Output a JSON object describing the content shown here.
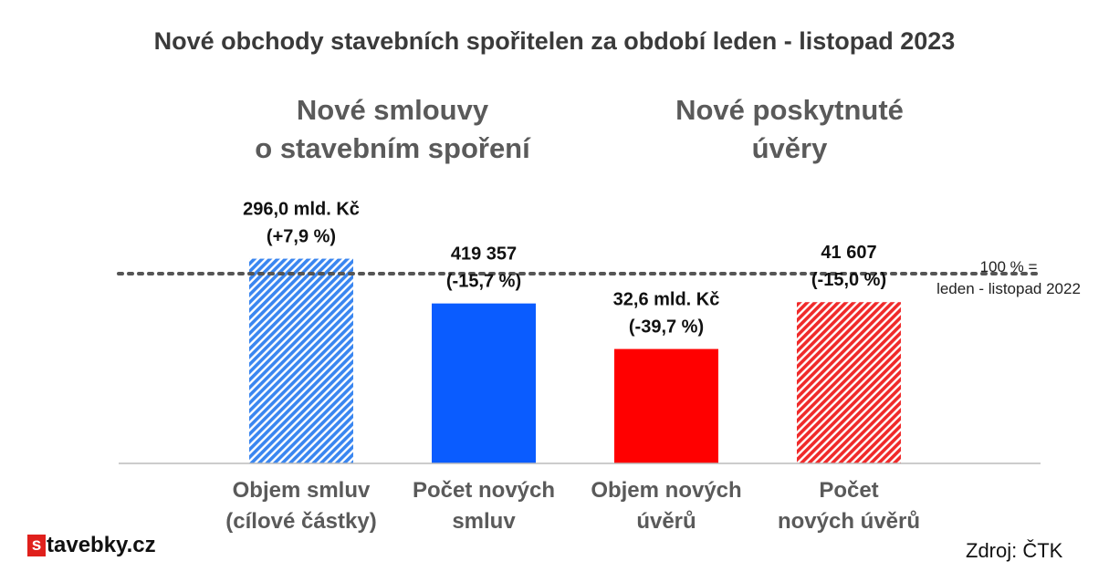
{
  "title": "Nové obchody stavebních spořitelen za období leden - listopad 2023",
  "group_titles": [
    {
      "line1": "Nové smlouvy",
      "line2": "o stavebním spoření"
    },
    {
      "line1": "Nové poskytnuté",
      "line2": "úvěry"
    }
  ],
  "reference_note": {
    "line1": "100 % =",
    "line2": "leden - listopad 2022"
  },
  "logo_text": {
    "s": "s",
    "rest": "tavebky.cz"
  },
  "source": "Zdroj: ČTK",
  "chart_data": {
    "type": "bar",
    "y_unit": "% of leden - listopad 2022",
    "reference_line": 100,
    "ylim": [
      0,
      130
    ],
    "categories": [
      {
        "line1": "Objem smluv",
        "line2": "(cílové částky)"
      },
      {
        "line1": "Počet  nových",
        "line2": "smluv"
      },
      {
        "line1": "Objem nových",
        "line2": "úvěrů"
      },
      {
        "line1": "Počet",
        "line2": "nových úvěrů"
      }
    ],
    "values": [
      107.9,
      84.3,
      60.3,
      85.0
    ],
    "bar_colors": [
      "#3a86f0",
      "#0a5cff",
      "#ff0000",
      "#f02a2a"
    ],
    "bar_hatched": [
      true,
      false,
      false,
      true
    ],
    "data_labels": [
      {
        "line1": "296,0 mld. Kč",
        "line2": "(+7,9 %)"
      },
      {
        "line1": "419 357",
        "line2": "(-15,7 %)"
      },
      {
        "line1": "32,6 mld. Kč",
        "line2": "(-39,7 %)"
      },
      {
        "line1": "41 607",
        "line2": "(-15,0 %)"
      }
    ],
    "grid": false,
    "legend": "none"
  }
}
